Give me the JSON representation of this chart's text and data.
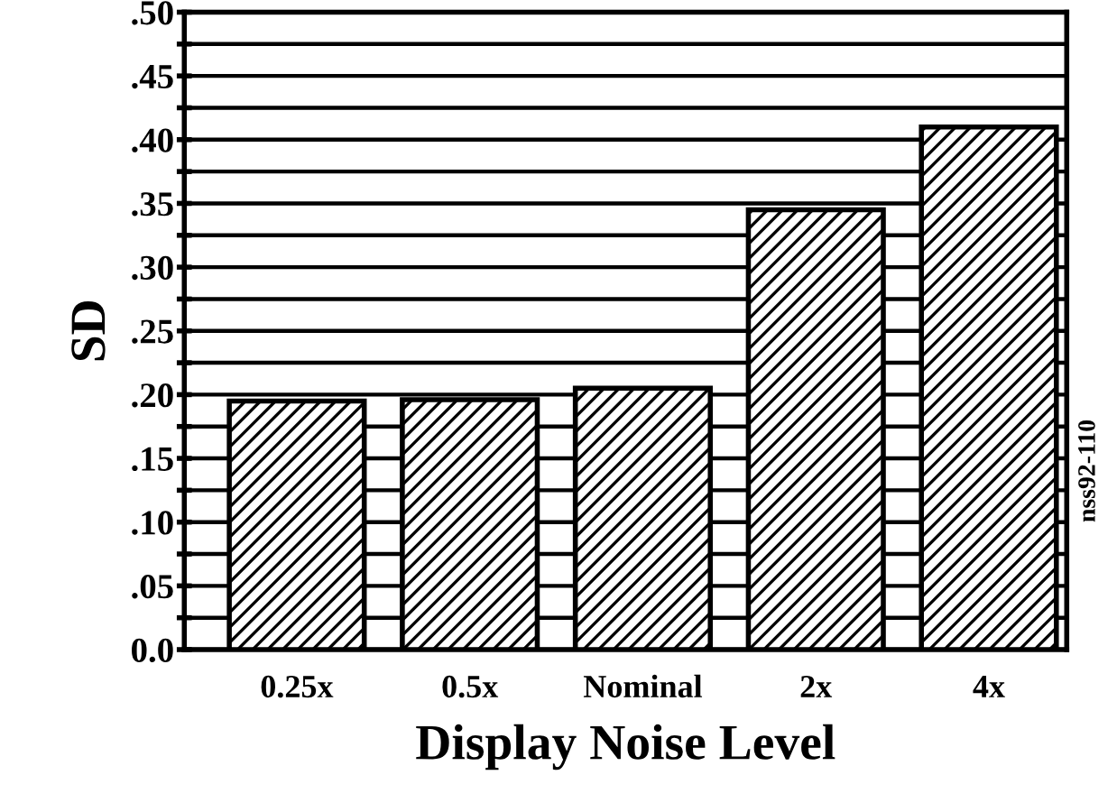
{
  "chart_data": {
    "type": "bar",
    "xlabel": "Display Noise Level",
    "ylabel": "SD",
    "categories": [
      "0.25x",
      "0.5x",
      "Nominal",
      "2x",
      "4x"
    ],
    "values": [
      0.195,
      0.196,
      0.205,
      0.345,
      0.41
    ],
    "color": "#000000",
    "ylim": [
      0,
      0.5
    ],
    "yticks": [
      {
        "value": 0,
        "label": "0.0"
      },
      {
        "value": 0.025,
        "label": null
      },
      {
        "value": 0.05,
        "label": ".05"
      },
      {
        "value": 0.075,
        "label": null
      },
      {
        "value": 0.1,
        "label": ".10"
      },
      {
        "value": 0.125,
        "label": null
      },
      {
        "value": 0.15,
        "label": ".15"
      },
      {
        "value": 0.175,
        "label": null
      },
      {
        "value": 0.2,
        "label": ".20"
      },
      {
        "value": 0.225,
        "label": null
      },
      {
        "value": 0.25,
        "label": ".25"
      },
      {
        "value": 0.275,
        "label": null
      },
      {
        "value": 0.3,
        "label": ".30"
      },
      {
        "value": 0.325,
        "label": null
      },
      {
        "value": 0.35,
        "label": ".35"
      },
      {
        "value": 0.375,
        "label": null
      },
      {
        "value": 0.4,
        "label": ".40"
      },
      {
        "value": 0.425,
        "label": null
      },
      {
        "value": 0.45,
        "label": ".45"
      },
      {
        "value": 0.475,
        "label": null
      },
      {
        "value": 0.5,
        "label": ".50"
      }
    ],
    "grid": "y",
    "annotations": [
      "nss92-110"
    ]
  }
}
